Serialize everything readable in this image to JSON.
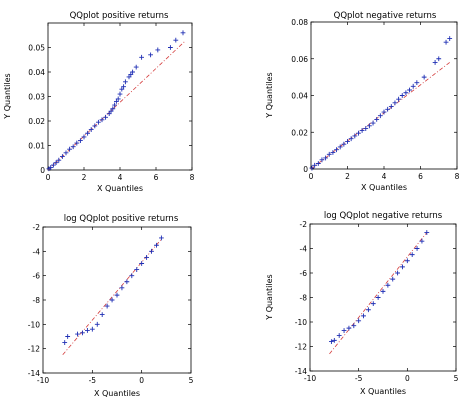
{
  "colors": {
    "marker": "#1f2fb4",
    "reference_line": "#d43b3b"
  },
  "chart_data": [
    {
      "type": "scatter",
      "title": "QQplot positive returns",
      "xlabel": "X Quantiles",
      "ylabel": "Y Quantiles",
      "xlim": [
        0,
        8
      ],
      "ylim": [
        0,
        0.06
      ],
      "xticks": [
        0,
        2,
        4,
        6,
        8
      ],
      "yticks": [
        0,
        0.01,
        0.02,
        0.03,
        0.04,
        0.05
      ],
      "xtick_labels": [
        "0",
        "2",
        "4",
        "6",
        "8"
      ],
      "ytick_labels": [
        "0",
        "0.01",
        "0.02",
        "0.03",
        "0.04",
        "0.05"
      ],
      "marker": "+",
      "reference_line": {
        "style": "dash-dot",
        "from": [
          0,
          0
        ],
        "to": [
          7.6,
          0.0525
        ]
      },
      "series": [
        {
          "x": [
            0.05,
            0.15,
            0.3,
            0.45,
            0.6,
            0.8,
            1.0,
            1.2,
            1.4,
            1.6,
            1.8,
            2.0,
            2.2,
            2.4,
            2.6,
            2.8,
            3.0,
            3.2,
            3.4,
            3.5,
            3.6,
            3.7,
            3.8,
            3.9,
            4.0,
            4.1,
            4.2,
            4.3,
            4.5,
            4.6,
            4.7,
            4.9,
            5.2,
            5.7,
            6.1,
            6.8,
            7.1,
            7.5
          ],
          "y": [
            0.0005,
            0.001,
            0.002,
            0.003,
            0.004,
            0.0055,
            0.007,
            0.0085,
            0.0095,
            0.011,
            0.012,
            0.0135,
            0.015,
            0.0165,
            0.018,
            0.0195,
            0.0205,
            0.0215,
            0.023,
            0.024,
            0.025,
            0.0265,
            0.028,
            0.029,
            0.031,
            0.033,
            0.034,
            0.036,
            0.038,
            0.039,
            0.04,
            0.042,
            0.046,
            0.047,
            0.049,
            0.05,
            0.053,
            0.056
          ]
        }
      ]
    },
    {
      "type": "scatter",
      "title": "QQplot negative returns",
      "xlabel": "X Quantiles",
      "ylabel": "Y Quantiles",
      "xlim": [
        0,
        8
      ],
      "ylim": [
        0,
        0.08
      ],
      "xticks": [
        0,
        2,
        4,
        6,
        8
      ],
      "yticks": [
        0,
        0.02,
        0.04,
        0.06,
        0.08
      ],
      "xtick_labels": [
        "0",
        "2",
        "4",
        "6",
        "8"
      ],
      "ytick_labels": [
        "0",
        "0.02",
        "0.04",
        "0.06",
        "0.08"
      ],
      "marker": "+",
      "reference_line": {
        "style": "dash-dot",
        "from": [
          0,
          0
        ],
        "to": [
          7.6,
          0.058
        ]
      },
      "series": [
        {
          "x": [
            0.05,
            0.2,
            0.4,
            0.6,
            0.8,
            1.0,
            1.2,
            1.4,
            1.6,
            1.8,
            2.0,
            2.2,
            2.4,
            2.6,
            2.8,
            3.0,
            3.2,
            3.4,
            3.6,
            3.8,
            4.0,
            4.2,
            4.4,
            4.6,
            4.8,
            5.0,
            5.2,
            5.4,
            5.6,
            5.8,
            6.2,
            6.8,
            7.0,
            7.4,
            7.6
          ],
          "y": [
            0.0005,
            0.002,
            0.003,
            0.005,
            0.006,
            0.008,
            0.009,
            0.0105,
            0.012,
            0.0135,
            0.015,
            0.0165,
            0.018,
            0.0195,
            0.021,
            0.022,
            0.0235,
            0.025,
            0.027,
            0.029,
            0.031,
            0.0325,
            0.034,
            0.036,
            0.038,
            0.04,
            0.0415,
            0.043,
            0.045,
            0.047,
            0.05,
            0.058,
            0.06,
            0.069,
            0.071
          ]
        }
      ]
    },
    {
      "type": "scatter",
      "title": "log QQplot positive returns",
      "xlabel": "X Quantiles",
      "ylabel": "Y Quantiles",
      "xlim": [
        -10,
        5
      ],
      "ylim": [
        -14,
        -2
      ],
      "xticks": [
        -10,
        -5,
        0,
        5
      ],
      "yticks": [
        -14,
        -12,
        -10,
        -8,
        -6,
        -4,
        -2
      ],
      "xtick_labels": [
        "-10",
        "-5",
        "0",
        "5"
      ],
      "ytick_labels": [
        "-14",
        "-12",
        "-10",
        "-8",
        "-6",
        "-4",
        "-2"
      ],
      "marker": "+",
      "reference_line": {
        "style": "dash-dot",
        "from": [
          -8.0,
          -12.5
        ],
        "to": [
          2.0,
          -3.0
        ]
      },
      "series": [
        {
          "x": [
            -7.8,
            -7.5,
            -6.5,
            -6.0,
            -5.5,
            -5.0,
            -4.5,
            -4.0,
            -3.5,
            -3.0,
            -2.5,
            -2.0,
            -1.5,
            -1.0,
            -0.5,
            0.0,
            0.5,
            1.0,
            1.5,
            2.0
          ],
          "y": [
            -11.5,
            -11.0,
            -10.8,
            -10.7,
            -10.5,
            -10.4,
            -10.0,
            -9.2,
            -8.5,
            -8.0,
            -7.6,
            -7.0,
            -6.5,
            -6.0,
            -5.5,
            -5.0,
            -4.5,
            -4.0,
            -3.5,
            -2.9
          ]
        }
      ]
    },
    {
      "type": "scatter",
      "title": "log QQplot negative returns",
      "xlabel": "X Quantiles",
      "ylabel": "Y Quantiles",
      "xlim": [
        -10,
        5
      ],
      "ylim": [
        -14,
        -2
      ],
      "xticks": [
        -10,
        -5,
        0,
        5
      ],
      "yticks": [
        -14,
        -12,
        -10,
        -8,
        -6,
        -4,
        -2
      ],
      "xtick_labels": [
        "-10",
        "-5",
        "0",
        "5"
      ],
      "ytick_labels": [
        "-14",
        "-12",
        "-10",
        "-8",
        "-6",
        "-4",
        "-2"
      ],
      "marker": "+",
      "reference_line": {
        "style": "dash-dot",
        "from": [
          -8.0,
          -12.6
        ],
        "to": [
          2.0,
          -2.7
        ]
      },
      "series": [
        {
          "x": [
            -7.8,
            -7.5,
            -7.0,
            -6.5,
            -6.0,
            -5.5,
            -5.0,
            -4.5,
            -4.0,
            -3.5,
            -3.0,
            -2.5,
            -2.0,
            -1.5,
            -1.0,
            -0.5,
            0.0,
            0.5,
            1.0,
            1.5,
            2.0
          ],
          "y": [
            -11.6,
            -11.5,
            -11.1,
            -10.7,
            -10.5,
            -10.3,
            -9.9,
            -9.5,
            -9.0,
            -8.5,
            -8.0,
            -7.5,
            -7.0,
            -6.5,
            -6.0,
            -5.5,
            -5.0,
            -4.5,
            -4.0,
            -3.4,
            -2.7
          ]
        }
      ]
    }
  ]
}
